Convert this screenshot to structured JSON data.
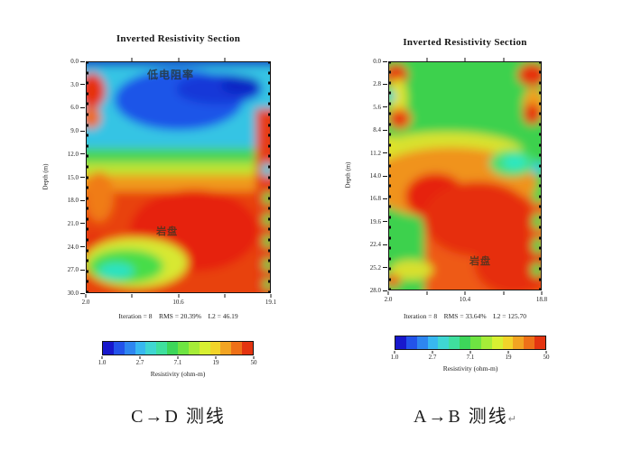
{
  "colorbar": {
    "colors": [
      "#1818cc",
      "#2353ea",
      "#2e86f0",
      "#38b8f0",
      "#3fd6d2",
      "#3fdf9e",
      "#3dd65a",
      "#6ee442",
      "#a6ec38",
      "#d8f032",
      "#f2d42a",
      "#f2a422",
      "#ee7018",
      "#e43410"
    ],
    "ticks": [
      "1.0",
      "2.7",
      "7.1",
      "19",
      "50"
    ],
    "label": "Resistivity (ohm-m)"
  },
  "panels": {
    "left": {
      "title": "Inverted Resistivity Section",
      "ylabel": "Depth (m)",
      "y_ticks": [
        "0.0",
        "3.0",
        "6.0",
        "9.0",
        "12.0",
        "15.0",
        "18.0",
        "21.0",
        "24.0",
        "27.0",
        "30.0"
      ],
      "x_ticks": [
        "2.0",
        "10.6",
        "19.1"
      ],
      "stats": "Iteration = 8    RMS = 20.39%    L2 = 46.19",
      "annotation_top": "低电阻率",
      "annotation_rock": "岩盘",
      "caption": "C→D 测线"
    },
    "right": {
      "title": "Inverted Resistivity Section",
      "ylabel": "Depth (m)",
      "y_ticks": [
        "0.0",
        "2.8",
        "5.6",
        "8.4",
        "11.2",
        "14.0",
        "16.8",
        "19.6",
        "22.4",
        "25.2",
        "28.0"
      ],
      "x_ticks": [
        "2.0",
        "10.4",
        "18.8"
      ],
      "stats": "Iteration = 8    RMS = 33.64%    L2 = 125.70",
      "annotation_rock": "岩盘",
      "caption": "A→B 测线",
      "caption_mark": "↵"
    }
  },
  "chart_data": [
    {
      "type": "heatmap",
      "title": "Inverted Resistivity Section",
      "section_caption": "C→D 测线",
      "xlabel": "",
      "ylabel": "Depth (m)",
      "x_ticks": [
        2.0,
        10.6,
        19.1
      ],
      "depth_ticks": [
        0.0,
        3.0,
        6.0,
        9.0,
        12.0,
        15.0,
        18.0,
        21.0,
        24.0,
        27.0,
        30.0
      ],
      "x_range": [
        2.0,
        19.1
      ],
      "depth_range": [
        0.0,
        30.0
      ],
      "color_scale": {
        "tick_values": [
          1.0,
          2.7,
          7.1,
          19,
          50
        ],
        "unit": "ohm-m",
        "scale": "log",
        "legend_label": "Resistivity (ohm-m)",
        "position": "bottom"
      },
      "iteration": 8,
      "rms_percent": 20.39,
      "l2": 46.19,
      "annotations": [
        {
          "text": "低电阻率",
          "meaning": "low resistivity zone",
          "x": 9.0,
          "depth": 1.5
        },
        {
          "text": "岩盘",
          "meaning": "bedrock",
          "x": 9.5,
          "depth": 21.5
        }
      ],
      "grid_x": [
        3.0,
        5.4,
        7.9,
        10.3,
        12.8,
        15.2,
        17.7,
        19.0
      ],
      "grid_depth": [
        1.5,
        4.5,
        7.5,
        10.5,
        13.5,
        16.5,
        19.5,
        22.5,
        25.5,
        28.5
      ],
      "grid_resistivity_ohm_m": [
        [
          30,
          8,
          1.5,
          1.5,
          1.5,
          1.5,
          1.5,
          4
        ],
        [
          45,
          4,
          2.5,
          1.5,
          1.2,
          1.2,
          2.5,
          8
        ],
        [
          25,
          4,
          4,
          4,
          4,
          4,
          8,
          40
        ],
        [
          8,
          8,
          4,
          4,
          4,
          8,
          15,
          45
        ],
        [
          15,
          15,
          8,
          8,
          8,
          15,
          25,
          45
        ],
        [
          25,
          25,
          15,
          25,
          25,
          25,
          45,
          45
        ],
        [
          25,
          45,
          45,
          45,
          45,
          45,
          45,
          30
        ],
        [
          25,
          45,
          30,
          45,
          45,
          45,
          45,
          45
        ],
        [
          25,
          15,
          8,
          25,
          45,
          45,
          45,
          10
        ],
        [
          4,
          8,
          15,
          25,
          45,
          45,
          45,
          45
        ]
      ]
    },
    {
      "type": "heatmap",
      "title": "Inverted Resistivity Section",
      "section_caption": "A→B 测线",
      "xlabel": "",
      "ylabel": "Depth (m)",
      "x_ticks": [
        2.0,
        10.4,
        18.8
      ],
      "depth_ticks": [
        0.0,
        2.8,
        5.6,
        8.4,
        11.2,
        14.0,
        16.8,
        19.6,
        22.4,
        25.2,
        28.0
      ],
      "x_range": [
        2.0,
        18.8
      ],
      "depth_range": [
        0.0,
        28.0
      ],
      "color_scale": {
        "tick_values": [
          1.0,
          2.7,
          7.1,
          19,
          50
        ],
        "unit": "ohm-m",
        "scale": "log",
        "legend_label": "Resistivity (ohm-m)",
        "position": "bottom"
      },
      "iteration": 8,
      "rms_percent": 33.64,
      "l2": 125.7,
      "annotations": [
        {
          "text": "岩盘",
          "meaning": "bedrock",
          "x": 11.0,
          "depth": 24.0
        }
      ],
      "grid_x": [
        3.0,
        5.3,
        7.7,
        10.0,
        12.4,
        14.7,
        17.1,
        18.5
      ],
      "grid_depth": [
        1.4,
        4.2,
        7.0,
        9.8,
        12.6,
        15.4,
        18.2,
        21.0,
        23.8,
        26.6
      ],
      "grid_resistivity_ohm_m": [
        [
          45,
          8,
          8,
          8,
          8,
          8,
          8,
          45
        ],
        [
          15,
          8,
          8,
          8,
          8,
          8,
          8,
          45
        ],
        [
          45,
          15,
          8,
          8,
          8,
          8,
          15,
          25
        ],
        [
          15,
          15,
          15,
          8,
          8,
          8,
          8,
          45
        ],
        [
          25,
          15,
          25,
          25,
          15,
          8,
          3,
          45
        ],
        [
          15,
          25,
          25,
          25,
          25,
          25,
          25,
          45
        ],
        [
          25,
          45,
          45,
          45,
          30,
          45,
          45,
          8
        ],
        [
          15,
          25,
          45,
          45,
          45,
          45,
          45,
          15
        ],
        [
          8,
          15,
          25,
          45,
          45,
          45,
          45,
          8
        ],
        [
          8,
          15,
          25,
          25,
          45,
          45,
          45,
          45
        ]
      ]
    }
  ]
}
